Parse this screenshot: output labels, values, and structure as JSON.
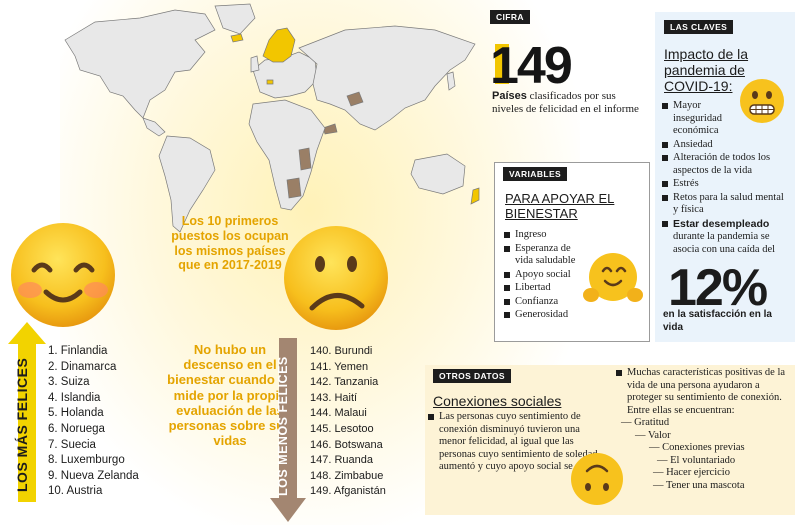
{
  "cifra": {
    "tag": "CIFRA",
    "number": "149",
    "text_bold": "Países",
    "text": " clasificados por sus niveles de felicidad en el informe"
  },
  "claves": {
    "tag": "LAS CLAVES",
    "title": "Impacto de la pandemia de COVID-19:",
    "items": [
      "Mayor inseguridad económica",
      "Ansiedad",
      "Alteración de todos los aspectos de la vida",
      "Estrés",
      "Retos para la salud mental y física"
    ],
    "last_bold": "Estar desempleado",
    "last_text": " durante la pandemia se asocia con una caída del",
    "percent": "12%",
    "percent_caption": "en la satisfacción en la vida"
  },
  "variables": {
    "tag": "VARIABLES",
    "title": "PARA APOYAR EL BIENESTAR",
    "items": [
      "Ingreso",
      "Esperanza de vida saludable",
      "Apoyo social",
      "Libertad",
      "Confianza",
      "Generosidad"
    ]
  },
  "center": {
    "text1": "Los 10 primeros puestos los ocupan los mismos países que en 2017-2019",
    "text2": "No hubo un descenso en el bienestar cuando se mide por la propia evaluación de las personas sobre sus vidas"
  },
  "mas_felices": {
    "label": "LOS MÁS FELICES",
    "items": [
      "1. Finlandia",
      "2. Dinamarca",
      "3. Suiza",
      "4. Islandia",
      "5. Holanda",
      "6. Noruega",
      "7. Suecia",
      "8. Luxemburgo",
      "9. Nueva Zelanda",
      "10. Austria"
    ]
  },
  "menos_felices": {
    "label": "LOS MENOS FELICES",
    "items": [
      "140. Burundi",
      "141. Yemen",
      "142. Tanzania",
      "143. Haití",
      "144. Malaui",
      "145. Lesotoo",
      "146. Botswana",
      "147. Ruanda",
      "148. Zimbabue",
      "149. Afganistán"
    ]
  },
  "otros": {
    "tag": "OTROS DATOS",
    "title": "Conexiones sociales",
    "text": "Las personas cuyo sentimiento de conexión disminuyó tuvieron una menor felicidad, al igual que las personas cuyo sentimiento de soledad aumentó y cuyo apoyo social se redujo.",
    "right_text": "Muchas características positivas de la vida de una persona ayudaron a proteger su sentimiento de conexión. Entre ellas se encuentran:",
    "list": [
      "Gratitud",
      "Valor",
      "Conexiones previas",
      "El voluntariado",
      "Hacer ejercicio",
      "Tener una mascota"
    ]
  },
  "colors": {
    "accent_yellow": "#f2c600",
    "happy_arrow": "#f2d300",
    "sad_arrow": "#a38671",
    "center_text": "#e4a400",
    "claves_bg": "#eaf3fb",
    "otros_bg": "#fdf3d6"
  }
}
